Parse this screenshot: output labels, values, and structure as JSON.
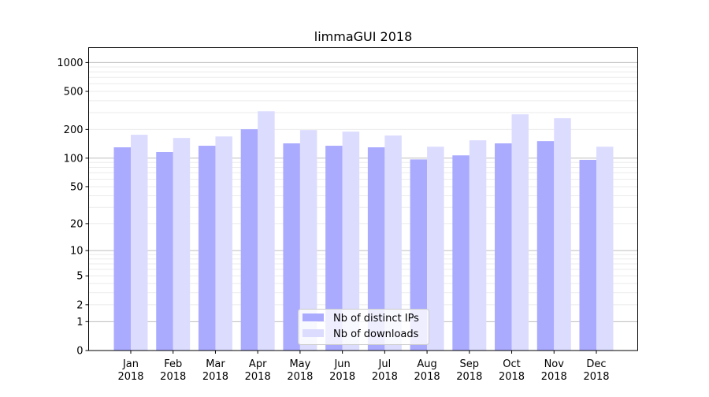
{
  "chart_data": {
    "type": "bar",
    "title": "limmaGUI 2018",
    "xlabel": "",
    "ylabel": "",
    "yscale": "log10(1+y)",
    "ylim": [
      0,
      1430
    ],
    "yticks": [
      0,
      1,
      2,
      5,
      10,
      20,
      50,
      100,
      200,
      500,
      1000
    ],
    "grid": true,
    "legend_position": "bottom-center",
    "categories": [
      "Jan\n2018",
      "Feb\n2018",
      "Mar\n2018",
      "Apr\n2018",
      "May\n2018",
      "Jun\n2018",
      "Jul\n2018",
      "Aug\n2018",
      "Sep\n2018",
      "Oct\n2018",
      "Nov\n2018",
      "Dec\n2018"
    ],
    "series": [
      {
        "name": "Nb of distinct IPs",
        "color": "#aaaaff",
        "values": [
          130,
          116,
          135,
          201,
          143,
          135,
          130,
          97,
          107,
          143,
          151,
          96
        ]
      },
      {
        "name": "Nb of downloads",
        "color": "#dcdcff",
        "values": [
          176,
          163,
          169,
          310,
          197,
          190,
          173,
          132,
          154,
          288,
          262,
          132
        ]
      }
    ]
  }
}
